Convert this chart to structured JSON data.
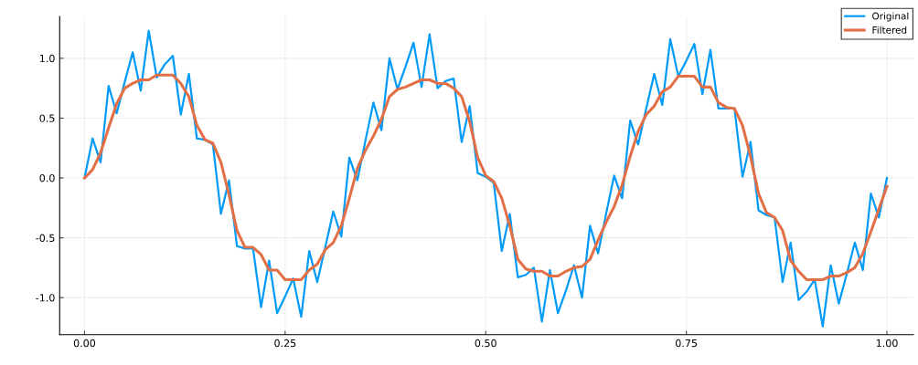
{
  "chart_data": {
    "type": "line",
    "x": [
      0,
      0.01,
      0.02,
      0.03,
      0.04,
      0.05,
      0.06,
      0.07,
      0.08,
      0.09,
      0.1,
      0.11,
      0.12,
      0.13,
      0.14,
      0.15,
      0.16,
      0.17,
      0.18,
      0.19,
      0.2,
      0.21,
      0.22,
      0.23,
      0.24,
      0.25,
      0.26,
      0.27,
      0.28,
      0.29,
      0.3,
      0.31,
      0.32,
      0.33,
      0.34,
      0.35,
      0.36,
      0.37,
      0.38,
      0.39,
      0.4,
      0.41,
      0.42,
      0.43,
      0.44,
      0.45,
      0.46,
      0.47,
      0.48,
      0.49,
      0.5,
      0.51,
      0.52,
      0.53,
      0.54,
      0.55,
      0.56,
      0.57,
      0.58,
      0.59,
      0.6,
      0.61,
      0.62,
      0.63,
      0.64,
      0.65,
      0.66,
      0.67,
      0.68,
      0.69,
      0.7,
      0.71,
      0.72,
      0.73,
      0.74,
      0.75,
      0.76,
      0.77,
      0.78,
      0.79,
      0.8,
      0.81,
      0.82,
      0.83,
      0.84,
      0.85,
      0.86,
      0.87,
      0.88,
      0.89,
      0.9,
      0.91,
      0.92,
      0.93,
      0.94,
      0.95,
      0.96,
      0.97,
      0.98,
      0.99,
      1.0
    ],
    "series": [
      {
        "name": "Original",
        "color": "#009af9",
        "values": [
          0,
          0.33,
          0.13,
          0.77,
          0.54,
          0.8,
          1.05,
          0.73,
          1.23,
          0.84,
          0.95,
          1.02,
          0.53,
          0.87,
          0.33,
          0.32,
          0.28,
          -0.3,
          -0.02,
          -0.57,
          -0.59,
          -0.59,
          -1.08,
          -0.69,
          -1.13,
          -0.99,
          -0.84,
          -1.16,
          -0.61,
          -0.87,
          -0.58,
          -0.28,
          -0.49,
          0.17,
          -0.02,
          0.31,
          0.63,
          0.4,
          1.0,
          0.74,
          0.93,
          1.13,
          0.76,
          1.2,
          0.75,
          0.81,
          0.83,
          0.3,
          0.6,
          0.04,
          0.01,
          -0.04,
          -0.61,
          -0.3,
          -0.83,
          -0.81,
          -0.75,
          -1.2,
          -0.77,
          -1.13,
          -0.94,
          -0.73,
          -1.0,
          -0.4,
          -0.63,
          -0.3,
          0.02,
          -0.17,
          0.48,
          0.28,
          0.58,
          0.87,
          0.61,
          1.16,
          0.85,
          0.98,
          1.12,
          0.7,
          1.07,
          0.58,
          0.58,
          0.58,
          0.01,
          0.3,
          -0.27,
          -0.31,
          -0.33,
          -0.87,
          -0.54,
          -1.02,
          -0.95,
          -0.85,
          -1.24,
          -0.73,
          -1.05,
          -0.8,
          -0.54,
          -0.77,
          -0.13,
          -0.33,
          0.0
        ]
      },
      {
        "name": "Filtered",
        "color": "#e26f46",
        "values": [
          0,
          0.07,
          0.21,
          0.42,
          0.62,
          0.75,
          0.79,
          0.82,
          0.82,
          0.86,
          0.86,
          0.86,
          0.79,
          0.68,
          0.44,
          0.32,
          0.29,
          0.13,
          -0.14,
          -0.44,
          -0.58,
          -0.58,
          -0.64,
          -0.77,
          -0.77,
          -0.85,
          -0.85,
          -0.85,
          -0.77,
          -0.72,
          -0.6,
          -0.54,
          -0.4,
          -0.17,
          0.08,
          0.23,
          0.35,
          0.49,
          0.68,
          0.74,
          0.76,
          0.79,
          0.82,
          0.82,
          0.79,
          0.79,
          0.75,
          0.68,
          0.47,
          0.17,
          0.02,
          -0.03,
          -0.17,
          -0.4,
          -0.68,
          -0.76,
          -0.78,
          -0.78,
          -0.82,
          -0.82,
          -0.78,
          -0.75,
          -0.74,
          -0.68,
          -0.52,
          -0.37,
          -0.24,
          -0.06,
          0.18,
          0.39,
          0.53,
          0.6,
          0.72,
          0.76,
          0.85,
          0.85,
          0.85,
          0.76,
          0.76,
          0.63,
          0.59,
          0.58,
          0.44,
          0.18,
          -0.13,
          -0.29,
          -0.33,
          -0.44,
          -0.69,
          -0.78,
          -0.85,
          -0.85,
          -0.85,
          -0.82,
          -0.82,
          -0.79,
          -0.75,
          -0.63,
          -0.45,
          -0.26,
          -0.07
        ]
      }
    ],
    "xlim": [
      -0.031,
      1.033
    ],
    "ylim": [
      -1.31,
      1.35
    ],
    "xticks": [
      {
        "value": 0,
        "label": "0.00"
      },
      {
        "value": 0.25,
        "label": "0.25"
      },
      {
        "value": 0.5,
        "label": "0.50"
      },
      {
        "value": 0.75,
        "label": "0.75"
      },
      {
        "value": 1,
        "label": "1.00"
      }
    ],
    "yticks": [
      {
        "value": -1,
        "label": "-1.0"
      },
      {
        "value": -0.5,
        "label": "-0.5"
      },
      {
        "value": 0,
        "label": "0.0"
      },
      {
        "value": 0.5,
        "label": "0.5"
      },
      {
        "value": 1,
        "label": "1.0"
      }
    ],
    "grid": true,
    "legend": "top right",
    "marker": "none",
    "line_style": "solid"
  }
}
